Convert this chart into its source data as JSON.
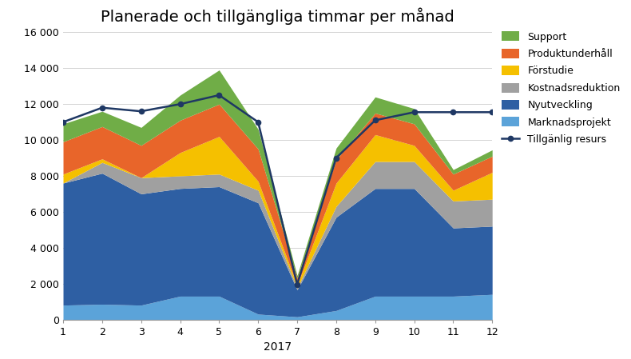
{
  "title": "Planerade och tillgängliga timmar per månad",
  "xlabel": "2017",
  "months": [
    1,
    2,
    3,
    4,
    5,
    6,
    7,
    8,
    9,
    10,
    11,
    12
  ],
  "series": {
    "Marknadsprojekt": [
      800,
      850,
      800,
      1300,
      1300,
      300,
      150,
      500,
      1300,
      1300,
      1300,
      1400
    ],
    "Nyutveckling": [
      6800,
      7300,
      6200,
      6000,
      6100,
      6200,
      1500,
      5200,
      6000,
      6000,
      3800,
      3800
    ],
    "Kostnadsreduktion": [
      0,
      600,
      900,
      700,
      700,
      700,
      100,
      600,
      1500,
      1500,
      1500,
      1500
    ],
    "Förstudie": [
      500,
      200,
      0,
      1300,
      2100,
      500,
      150,
      1300,
      1500,
      900,
      600,
      1500
    ],
    "Produktunderhåll": [
      1800,
      1800,
      1800,
      1800,
      1800,
      1800,
      400,
      1300,
      1200,
      1200,
      900,
      900
    ],
    "Support": [
      1000,
      850,
      1000,
      1400,
      1900,
      1100,
      150,
      650,
      900,
      850,
      250,
      350
    ]
  },
  "resurs": [
    11000,
    11800,
    11600,
    12000,
    12500,
    11000,
    1950,
    9000,
    11100,
    11550,
    11550,
    11550
  ],
  "colors": {
    "Marknadsprojekt": "#5ba3d9",
    "Nyutveckling": "#2e5fa3",
    "Kostnadsreduktion": "#a0a0a0",
    "Förstudie": "#f5c000",
    "Produktunderhåll": "#e8652a",
    "Support": "#70ad47"
  },
  "resurs_color": "#1f3864",
  "ylim": [
    0,
    16000
  ],
  "yticks": [
    0,
    2000,
    4000,
    6000,
    8000,
    10000,
    12000,
    14000,
    16000
  ],
  "ytick_labels": [
    "0",
    "2 000",
    "4 000",
    "6 000",
    "8 000",
    "10 000",
    "12 000",
    "14 000",
    "16 000"
  ],
  "bg_color": "#ffffff",
  "grid_color": "#d3d3d3",
  "title_fontsize": 14,
  "tick_fontsize": 9,
  "legend_fontsize": 9
}
